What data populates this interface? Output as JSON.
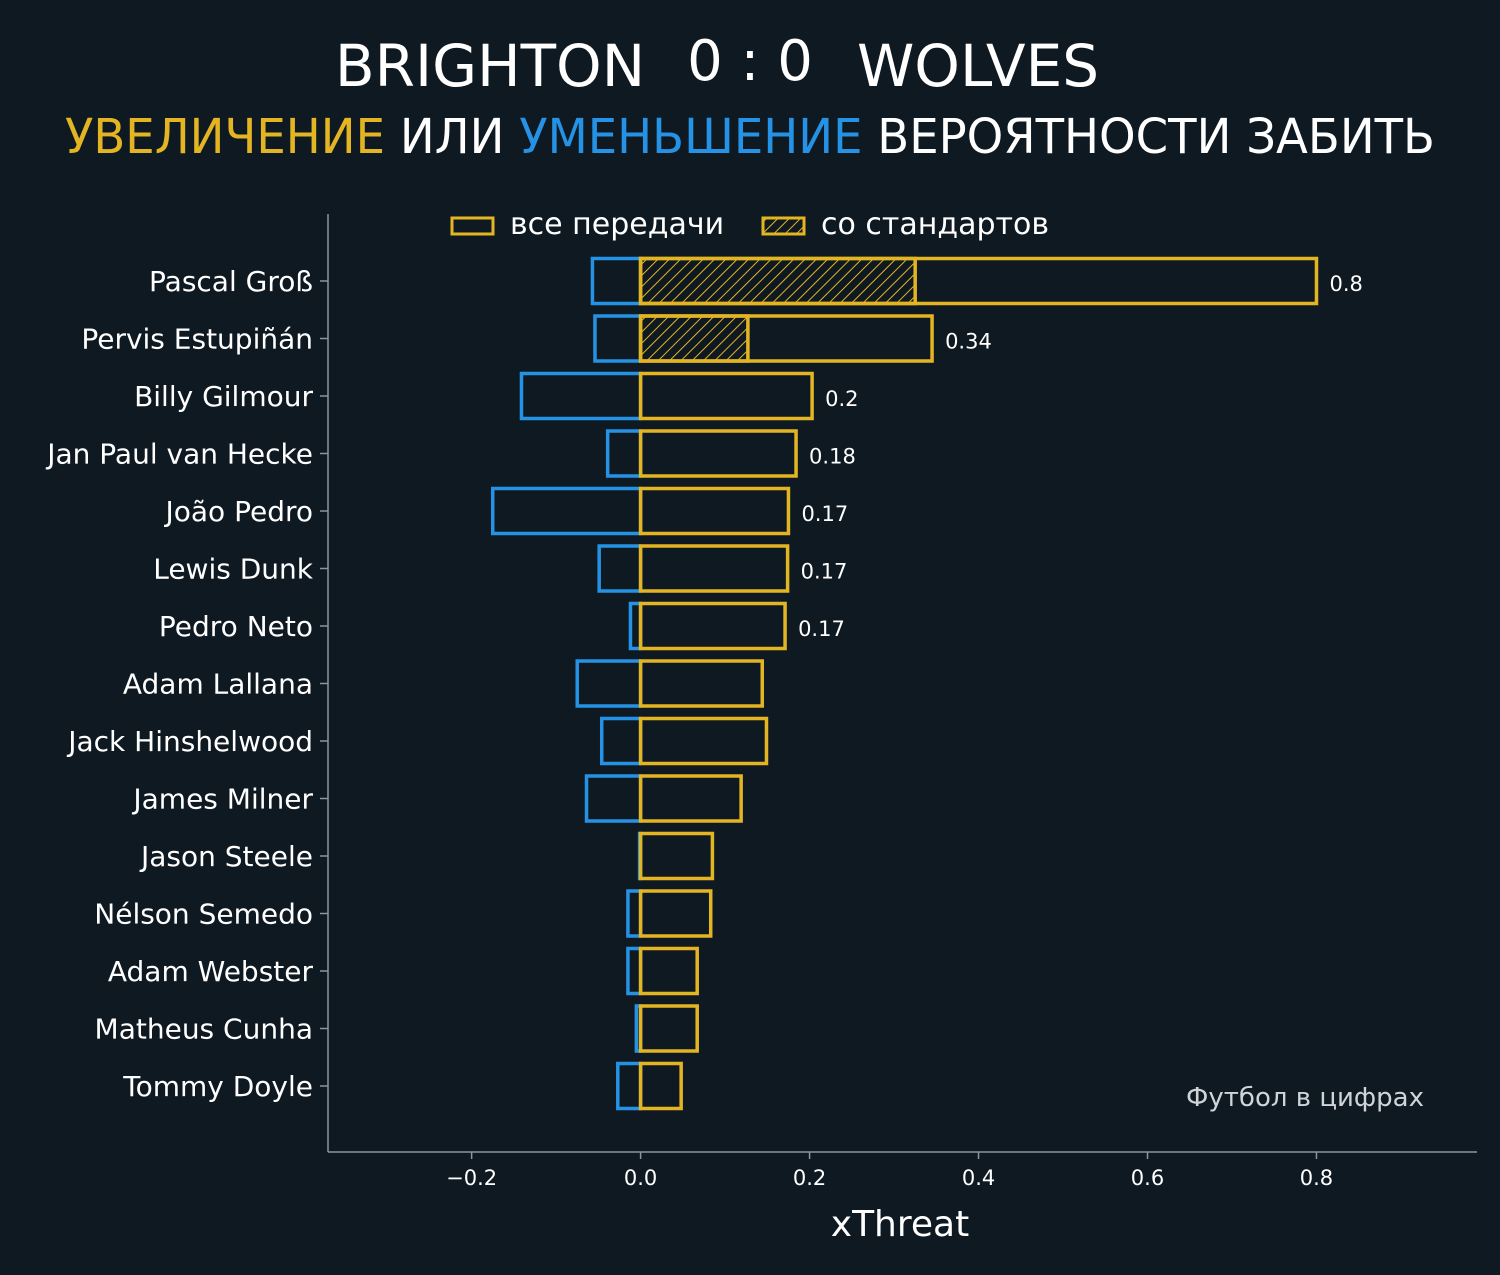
{
  "header": {
    "home_team": "BRIGHTON",
    "score": "0 : 0",
    "away_team": "WOLVES",
    "subtitle_increase": "УВЕЛИЧЕНИЕ",
    "subtitle_or": "ИЛИ",
    "subtitle_decrease": "УМЕНЬШЕНИЕ",
    "subtitle_rest": "ВЕРОЯТНОСТИ ЗАБИТЬ"
  },
  "watermark": "Футбол в цифрах",
  "colors": {
    "background": "#0f1921",
    "positive": "#e3b523",
    "negative": "#2592e5",
    "text": "#ffffff",
    "axis": "#8a969f",
    "watermark": "#cfd4d8"
  },
  "chart_data": {
    "type": "bar",
    "orientation": "horizontal",
    "xlabel": "xThreat",
    "xlim": [
      -0.37,
      0.99
    ],
    "xticks": [
      -0.2,
      0.0,
      0.2,
      0.4,
      0.6,
      0.8
    ],
    "xtick_labels": [
      "−0.2",
      "0.0",
      "0.2",
      "0.4",
      "0.6",
      "0.8"
    ],
    "legend": {
      "placement": "top",
      "entries": [
        "все передачи",
        "со стандартов"
      ]
    },
    "categories": [
      "Pascal Groß",
      "Pervis Estupiñán",
      "Billy Gilmour",
      "Jan Paul van Hecke",
      "João Pedro",
      "Lewis Dunk",
      "Pedro Neto",
      "Adam Lallana",
      "Jack Hinshelwood",
      "James Milner",
      "Jason Steele",
      "Nélson Semedo",
      "Adam Webster",
      "Matheus Cunha",
      "Tommy Doyle"
    ],
    "series": [
      {
        "name": "все передачи",
        "positive": [
          0.8,
          0.345,
          0.203,
          0.184,
          0.175,
          0.174,
          0.171,
          0.144,
          0.149,
          0.119,
          0.085,
          0.083,
          0.067,
          0.067,
          0.048
        ],
        "negative": [
          -0.057,
          -0.054,
          -0.141,
          -0.039,
          -0.175,
          -0.049,
          -0.012,
          -0.075,
          -0.046,
          -0.064,
          0.0,
          -0.015,
          -0.015,
          -0.005,
          -0.027
        ]
      },
      {
        "name": "со стандартов",
        "positive": [
          0.325,
          0.127,
          0,
          0,
          0,
          0,
          0,
          0,
          0,
          0,
          0,
          0,
          0,
          0,
          0
        ]
      }
    ],
    "data_labels": [
      "0.8",
      "0.34",
      "0.2",
      "0.18",
      "0.17",
      "0.17",
      "0.17",
      "",
      "",
      "",
      "",
      "",
      "",
      "",
      ""
    ]
  }
}
